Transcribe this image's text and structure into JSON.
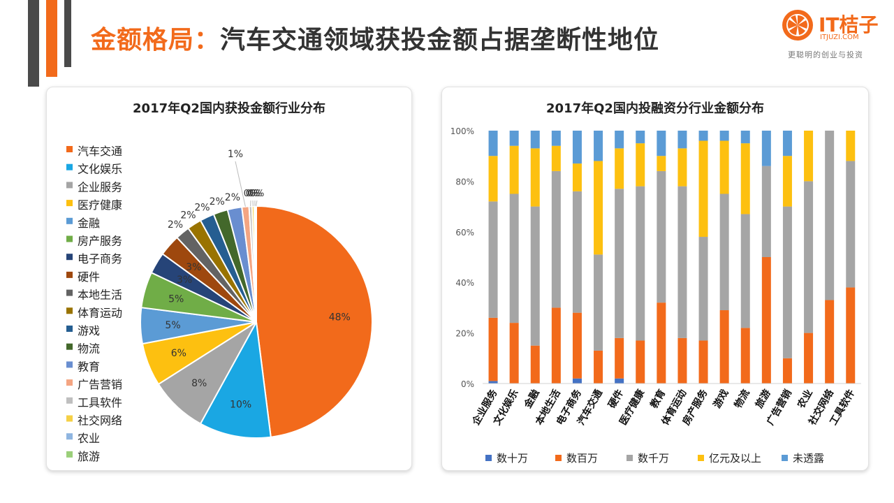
{
  "header": {
    "title_accent": "金额格局：",
    "title_main": "汽车交通领域获投金额占据垄断性地位",
    "accent_color": "#f26a1b"
  },
  "logo": {
    "name": "IT桔子",
    "site": "ITJUZI.COM",
    "slogan": "更聪明的创业与投资",
    "icon": "orange-slice-icon"
  },
  "colors": {
    "pie": [
      "#f26a1b",
      "#1aa7e3",
      "#a5a5a5",
      "#fdc010",
      "#5b9bd5",
      "#70ad47",
      "#264478",
      "#9e480e",
      "#636363",
      "#997300",
      "#255e91",
      "#43682b",
      "#698ed0",
      "#f4a582",
      "#bfbfbf",
      "#f5d046",
      "#8fb5e0",
      "#9bcf7a"
    ],
    "stack": [
      "#4472c4",
      "#f26a1b",
      "#a5a5a5",
      "#fdc010",
      "#5b9bd5"
    ]
  },
  "chart_data": [
    {
      "type": "pie",
      "title": "2017年Q2国内获投金额行业分布",
      "categories": [
        "汽车交通",
        "文化娱乐",
        "企业服务",
        "医疗健康",
        "金融",
        "房产服务",
        "电子商务",
        "硬件",
        "本地生活",
        "体育运动",
        "游戏",
        "物流",
        "教育",
        "广告营销",
        "工具软件",
        "社交网络",
        "农业",
        "旅游"
      ],
      "values": [
        48,
        10,
        8,
        6,
        5,
        5,
        3,
        3,
        2,
        2,
        2,
        2,
        2,
        1,
        0.4,
        0.3,
        0.2,
        0.1
      ],
      "data_labels": [
        "48%",
        "10%",
        "8%",
        "6%",
        "5%",
        "5%",
        "3%",
        "3%",
        "2%",
        "2%",
        "2%",
        "2%",
        "2%",
        "1%",
        "0%",
        "0%",
        "0%",
        "0%"
      ],
      "legend_position": "left"
    },
    {
      "type": "bar",
      "stacked": true,
      "percent": true,
      "title": "2017年Q2国内投融资分行业金额分布",
      "categories": [
        "企业服务",
        "文化娱乐",
        "金融",
        "本地生活",
        "电子商务",
        "汽车交通",
        "硬件",
        "医疗健康",
        "教育",
        "体育运动",
        "房产服务",
        "游戏",
        "物流",
        "旅游",
        "广告营销",
        "农业",
        "社交网络",
        "工具软件"
      ],
      "series": [
        {
          "name": "数十万",
          "values": [
            1,
            0,
            0,
            0,
            2,
            0,
            2,
            0,
            0,
            0,
            0,
            0,
            0,
            0,
            0,
            0,
            0,
            0
          ]
        },
        {
          "name": "数百万",
          "values": [
            25,
            24,
            15,
            30,
            26,
            13,
            16,
            17,
            32,
            18,
            17,
            29,
            22,
            50,
            10,
            20,
            33,
            38
          ]
        },
        {
          "name": "数千万",
          "values": [
            46,
            51,
            55,
            54,
            48,
            38,
            59,
            61,
            52,
            60,
            41,
            46,
            45,
            36,
            60,
            60,
            67,
            50
          ]
        },
        {
          "name": "亿元及以上",
          "values": [
            18,
            19,
            23,
            10,
            11,
            37,
            16,
            17,
            6,
            15,
            38,
            21,
            28,
            0,
            20,
            20,
            0,
            12
          ]
        },
        {
          "name": "未透露",
          "values": [
            10,
            6,
            7,
            6,
            13,
            12,
            7,
            5,
            10,
            7,
            4,
            4,
            5,
            14,
            10,
            0,
            0,
            0
          ]
        }
      ],
      "yticks": [
        "0%",
        "20%",
        "40%",
        "60%",
        "80%",
        "100%"
      ],
      "ylim": [
        0,
        100
      ],
      "legend_position": "bottom"
    }
  ]
}
